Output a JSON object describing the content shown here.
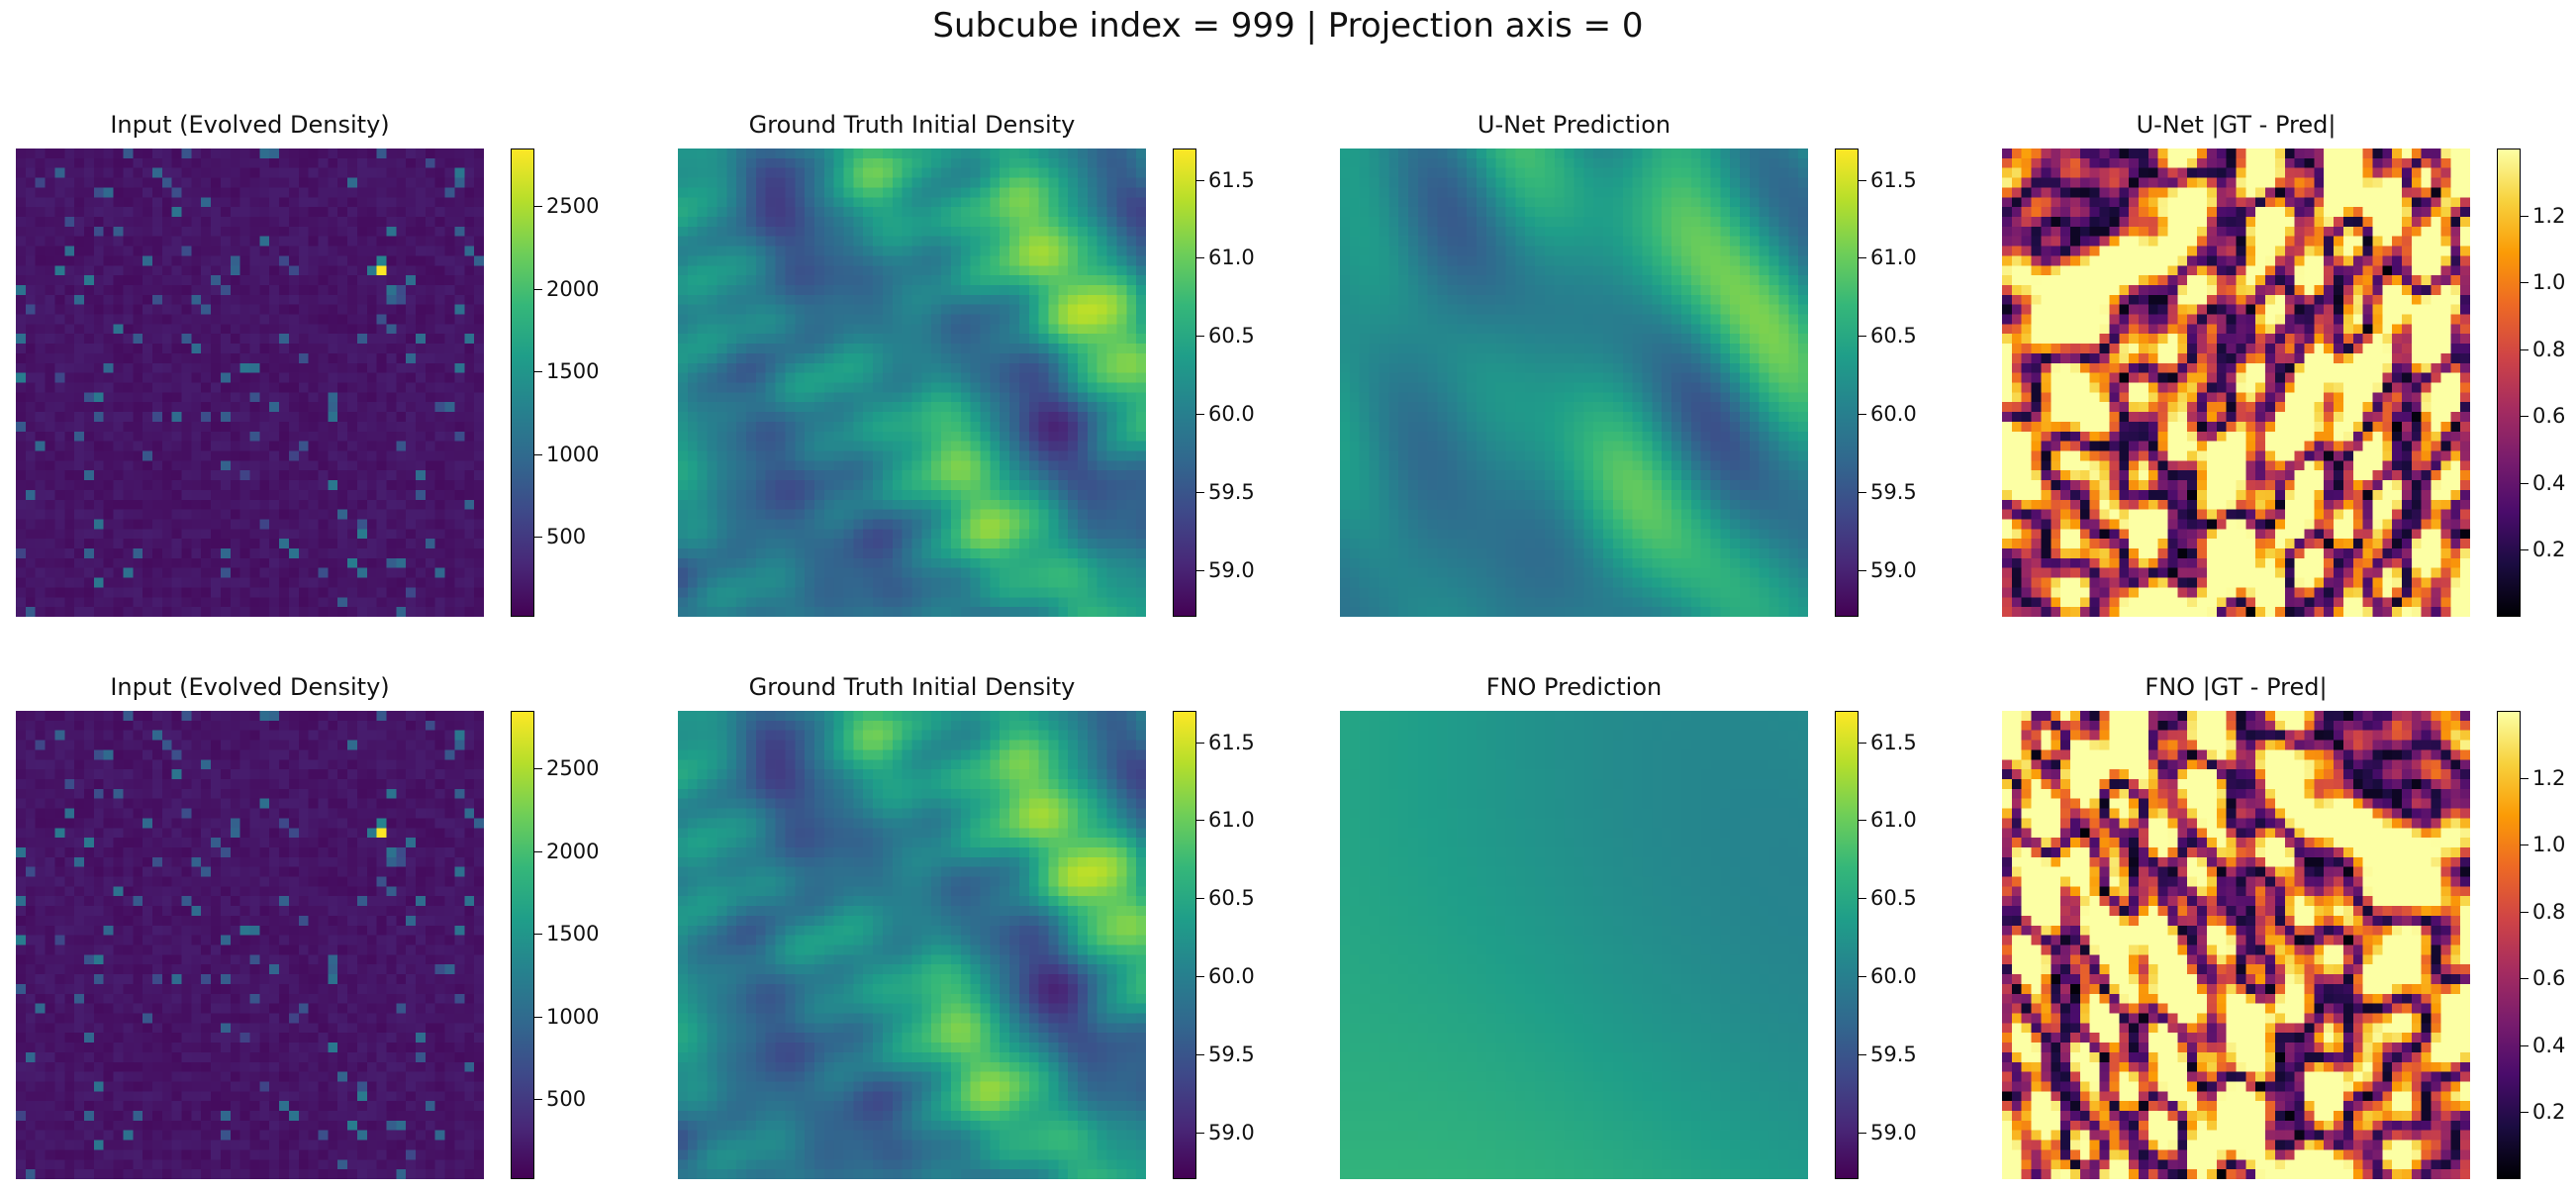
{
  "figure": {
    "suptitle": "Subcube index = 999 | Projection axis = 0"
  },
  "chart_data": [
    {
      "type": "heatmap",
      "row": 0,
      "col": 0,
      "name": "input-unet-row",
      "title": "Input (Evolved Density)",
      "colormap": "viridis",
      "vmin": 15,
      "vmax": 2850,
      "colorbar_ticks": [
        500,
        1000,
        1500,
        2000,
        2500
      ],
      "grid": false,
      "legend": "none"
    },
    {
      "type": "heatmap",
      "row": 0,
      "col": 1,
      "name": "gt-unet-row",
      "title": "Ground Truth Initial Density",
      "colormap": "viridis",
      "vmin": 58.7,
      "vmax": 61.7,
      "colorbar_ticks": [
        59.0,
        59.5,
        60.0,
        60.5,
        61.0,
        61.5
      ],
      "grid": false,
      "legend": "none"
    },
    {
      "type": "heatmap",
      "row": 0,
      "col": 2,
      "name": "unet-prediction",
      "title": "U-Net Prediction",
      "colormap": "viridis",
      "vmin": 58.7,
      "vmax": 61.7,
      "colorbar_ticks": [
        59.0,
        59.5,
        60.0,
        60.5,
        61.0,
        61.5
      ],
      "grid": false,
      "legend": "none"
    },
    {
      "type": "heatmap",
      "row": 0,
      "col": 3,
      "name": "unet-error",
      "title": "U-Net |GT - Pred|",
      "colormap": "inferno",
      "vmin": 0.0,
      "vmax": 1.4,
      "colorbar_ticks": [
        0.2,
        0.4,
        0.6,
        0.8,
        1.0,
        1.2
      ],
      "grid": false,
      "legend": "none"
    },
    {
      "type": "heatmap",
      "row": 1,
      "col": 0,
      "name": "input-fno-row",
      "title": "Input (Evolved Density)",
      "colormap": "viridis",
      "vmin": 15,
      "vmax": 2850,
      "colorbar_ticks": [
        500,
        1000,
        1500,
        2000,
        2500
      ],
      "grid": false,
      "legend": "none"
    },
    {
      "type": "heatmap",
      "row": 1,
      "col": 1,
      "name": "gt-fno-row",
      "title": "Ground Truth Initial Density",
      "colormap": "viridis",
      "vmin": 58.7,
      "vmax": 61.7,
      "colorbar_ticks": [
        59.0,
        59.5,
        60.0,
        60.5,
        61.0,
        61.5
      ],
      "grid": false,
      "legend": "none"
    },
    {
      "type": "heatmap",
      "row": 1,
      "col": 2,
      "name": "fno-prediction",
      "title": "FNO Prediction",
      "colormap": "viridis",
      "vmin": 58.7,
      "vmax": 61.7,
      "colorbar_ticks": [
        59.0,
        59.5,
        60.0,
        60.5,
        61.0,
        61.5
      ],
      "grid": false,
      "legend": "none"
    },
    {
      "type": "heatmap",
      "row": 1,
      "col": 3,
      "name": "fno-error",
      "title": "FNO |GT - Pred|",
      "colormap": "inferno",
      "vmin": 0.0,
      "vmax": 1.4,
      "colorbar_ticks": [
        0.2,
        0.4,
        0.6,
        0.8,
        1.0,
        1.2
      ],
      "grid": false,
      "legend": "none"
    }
  ],
  "colormaps": {
    "viridis": [
      "#440154",
      "#482878",
      "#3e4989",
      "#31688e",
      "#26828e",
      "#1f9e89",
      "#35b779",
      "#6ece58",
      "#b5de2b",
      "#fde725"
    ],
    "inferno": [
      "#000004",
      "#1b0c41",
      "#4a0c6b",
      "#781c6d",
      "#a52c60",
      "#cf4446",
      "#ed6925",
      "#fb9b06",
      "#f7d13d",
      "#fcffa4"
    ]
  }
}
